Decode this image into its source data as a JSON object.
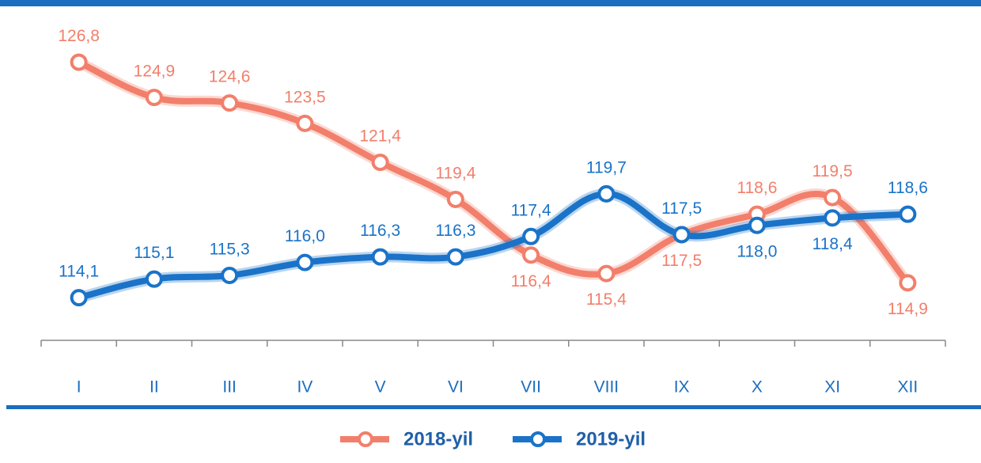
{
  "chart_data": {
    "type": "line",
    "categories": [
      "I",
      "II",
      "III",
      "IV",
      "V",
      "VI",
      "VII",
      "VIII",
      "IX",
      "X",
      "XI",
      "XII"
    ],
    "series": [
      {
        "name": "2018-yil",
        "color": "#f27f6b",
        "values": [
          126.8,
          124.9,
          124.6,
          123.5,
          121.4,
          119.4,
          116.4,
          115.4,
          117.5,
          118.6,
          119.5,
          114.9
        ],
        "value_labels": [
          "126,8",
          "124,9",
          "124,6",
          "123,5",
          "121,4",
          "119,4",
          "116,4",
          "115,4",
          "117,5",
          "118,6",
          "119,5",
          "114,9"
        ]
      },
      {
        "name": "2019-yil",
        "color": "#1a73c8",
        "values": [
          114.1,
          115.1,
          115.3,
          116.0,
          116.3,
          116.3,
          117.4,
          119.7,
          117.5,
          118.0,
          118.4,
          118.6
        ],
        "value_labels": [
          "114,1",
          "115,1",
          "115,3",
          "116,0",
          "116,3",
          "116,3",
          "117,4",
          "119,7",
          "117,5",
          "118,0",
          "118,4",
          "118,6"
        ]
      }
    ],
    "ylim": [
      111.8,
      129.3
    ]
  }
}
